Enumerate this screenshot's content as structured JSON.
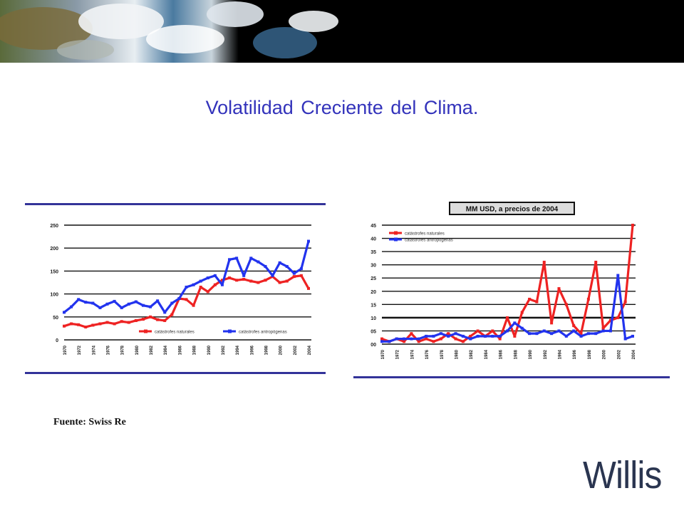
{
  "slide": {
    "title": "Volatilidad Creciente del Clima.",
    "source": "Fuente: Swiss Re",
    "logo_text": "Willis"
  },
  "colors": {
    "title": "#3333bb",
    "natural_series": "#ee2222",
    "man_made_series": "#2233ee",
    "axis_rule": "#333399",
    "logo": "#2a3550"
  },
  "chart_data": [
    {
      "type": "line",
      "title": "",
      "xlabel": "",
      "ylabel": "",
      "ylim": [
        0,
        250
      ],
      "yticks": [
        "0",
        "50",
        "100",
        "150",
        "200",
        "250"
      ],
      "xticks": [
        "1970",
        "1972",
        "1974",
        "1976",
        "1978",
        "1980",
        "1982",
        "1984",
        "1986",
        "1988",
        "1990",
        "1992",
        "1994",
        "1996",
        "1998",
        "2000",
        "2002",
        "2004"
      ],
      "x": [
        1970,
        1971,
        1972,
        1973,
        1974,
        1975,
        1976,
        1977,
        1978,
        1979,
        1980,
        1981,
        1982,
        1983,
        1984,
        1985,
        1986,
        1987,
        1988,
        1989,
        1990,
        1991,
        1992,
        1993,
        1994,
        1995,
        1996,
        1997,
        1998,
        1999,
        2000,
        2001,
        2002,
        2003,
        2004
      ],
      "series": [
        {
          "name": "catástrofes naturales",
          "color": "#ee2222",
          "values": [
            30,
            35,
            33,
            28,
            32,
            35,
            38,
            35,
            40,
            38,
            42,
            45,
            50,
            44,
            42,
            55,
            90,
            88,
            75,
            115,
            105,
            120,
            130,
            135,
            130,
            132,
            128,
            125,
            130,
            138,
            125,
            128,
            138,
            140,
            112
          ]
        },
        {
          "name": "catástrofes antropógenas",
          "color": "#2233ee",
          "values": [
            60,
            72,
            88,
            82,
            80,
            70,
            78,
            84,
            70,
            78,
            83,
            75,
            72,
            85,
            60,
            80,
            90,
            115,
            120,
            128,
            135,
            140,
            120,
            175,
            178,
            140,
            178,
            170,
            160,
            140,
            168,
            160,
            145,
            155,
            215
          ]
        }
      ],
      "legend": "bottom"
    },
    {
      "type": "line",
      "title": "MM USD, a precios de 2004",
      "xlabel": "",
      "ylabel": "",
      "ylim": [
        0,
        45
      ],
      "yticks": [
        "00",
        "05",
        "10",
        "15",
        "20",
        "25",
        "30",
        "35",
        "40",
        "45"
      ],
      "xticks": [
        "1970",
        "1972",
        "1974",
        "1976",
        "1978",
        "1980",
        "1982",
        "1984",
        "1986",
        "1988",
        "1990",
        "1992",
        "1994",
        "1996",
        "1998",
        "2000",
        "2002",
        "2004"
      ],
      "x": [
        1970,
        1971,
        1972,
        1973,
        1974,
        1975,
        1976,
        1977,
        1978,
        1979,
        1980,
        1981,
        1982,
        1983,
        1984,
        1985,
        1986,
        1987,
        1988,
        1989,
        1990,
        1991,
        1992,
        1993,
        1994,
        1995,
        1996,
        1997,
        1998,
        1999,
        2000,
        2001,
        2002,
        2003,
        2004
      ],
      "series": [
        {
          "name": "catástrofes naturales",
          "color": "#ee2222",
          "values": [
            2,
            1,
            2,
            1,
            4,
            1,
            2,
            1,
            2,
            4,
            2,
            1,
            3,
            5,
            3,
            5,
            2,
            10,
            3,
            12,
            17,
            16,
            31,
            8,
            21,
            15,
            7,
            4,
            17,
            31,
            6,
            9,
            10,
            16,
            45
          ]
        },
        {
          "name": "catástrofes antropógenas",
          "color": "#2233ee",
          "values": [
            1,
            1,
            2,
            2,
            2,
            2,
            3,
            3,
            4,
            3,
            4,
            3,
            2,
            3,
            3,
            3,
            3,
            5,
            8,
            6,
            4,
            4,
            5,
            4,
            5,
            3,
            5,
            3,
            4,
            4,
            5,
            5,
            26,
            2,
            3
          ]
        }
      ],
      "legend": "top-left"
    }
  ]
}
